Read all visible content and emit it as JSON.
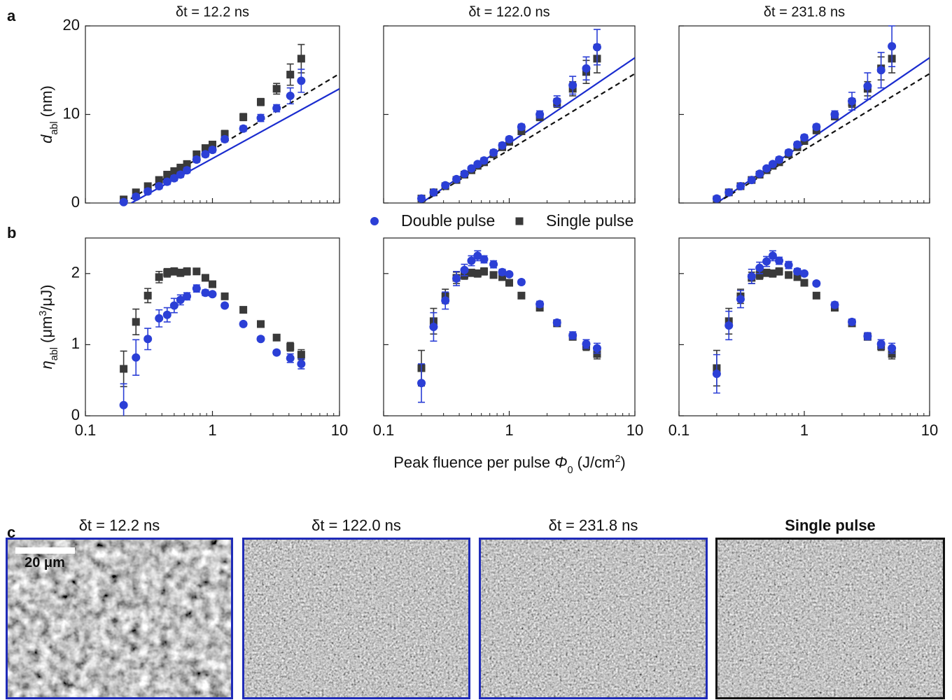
{
  "panel_labels": [
    "a",
    "b",
    "c"
  ],
  "chart_data": [
    {
      "type": "scatter",
      "title": "δt = 12.2 ns",
      "xlog": true,
      "xlim": [
        0.1,
        10
      ],
      "xticks": [
        0.1,
        1,
        10
      ],
      "show_xtick_labels": false,
      "ylim": [
        0,
        20
      ],
      "yticks": [
        0,
        10,
        20
      ],
      "show_ytick_labels": true,
      "ylabel": [
        {
          "t": "d",
          "italic": true
        },
        {
          "t": "abl",
          "sub": true
        },
        {
          "t": " (nm)"
        }
      ],
      "x": [
        0.2,
        0.25,
        0.31,
        0.38,
        0.44,
        0.5,
        0.56,
        0.63,
        0.75,
        0.88,
        1.0,
        1.25,
        1.75,
        2.4,
        3.2,
        4.1,
        5.0
      ],
      "series": [
        {
          "color": "#3a3a3a",
          "marker": "square",
          "values": [
            0.4,
            1.2,
            1.9,
            2.6,
            3.2,
            3.6,
            4.0,
            4.4,
            5.5,
            6.2,
            6.6,
            7.8,
            9.7,
            11.4,
            12.9,
            14.5,
            16.3
          ],
          "errors": [
            0.3,
            0.3,
            0.3,
            0.3,
            0.3,
            0.3,
            0.3,
            0.3,
            0.3,
            0.3,
            0.3,
            0.4,
            0.4,
            0.4,
            0.6,
            1.2,
            1.6
          ]
        },
        {
          "color": "#2b3fd6",
          "marker": "circle",
          "values": [
            0.1,
            0.7,
            1.3,
            1.9,
            2.4,
            2.8,
            3.2,
            3.7,
            4.9,
            5.5,
            6.0,
            7.2,
            8.4,
            9.6,
            10.7,
            12.1,
            13.8
          ],
          "errors": [
            0.2,
            0.3,
            0.3,
            0.3,
            0.3,
            0.3,
            0.3,
            0.3,
            0.3,
            0.3,
            0.3,
            0.3,
            0.3,
            0.4,
            0.4,
            0.9,
            1.3
          ]
        }
      ],
      "lines": [
        {
          "color": "#1a2ccf",
          "dash": false,
          "x": [
            0.23,
            10
          ],
          "y": [
            0,
            12.9
          ]
        },
        {
          "color": "#111111",
          "dash": true,
          "x": [
            0.2,
            10
          ],
          "y": [
            0,
            14.6
          ]
        }
      ]
    },
    {
      "type": "scatter",
      "title": "δt = 122.0 ns",
      "xlog": true,
      "xlim": [
        0.1,
        10
      ],
      "xticks": [
        0.1,
        1,
        10
      ],
      "show_xtick_labels": false,
      "ylim": [
        0,
        20
      ],
      "yticks": [
        0,
        10,
        20
      ],
      "show_ytick_labels": false,
      "x": [
        0.2,
        0.25,
        0.31,
        0.38,
        0.44,
        0.5,
        0.56,
        0.63,
        0.75,
        0.88,
        1.0,
        1.25,
        1.75,
        2.4,
        3.2,
        4.1,
        5.0
      ],
      "series": [
        {
          "color": "#3a3a3a",
          "marker": "square",
          "values": [
            0.5,
            1.2,
            1.9,
            2.6,
            3.2,
            3.7,
            4.2,
            4.6,
            5.5,
            6.3,
            6.9,
            8.1,
            9.7,
            11.3,
            12.9,
            14.8,
            16.3
          ],
          "errors": [
            0.3,
            0.3,
            0.3,
            0.3,
            0.3,
            0.3,
            0.3,
            0.3,
            0.3,
            0.3,
            0.3,
            0.3,
            0.4,
            0.5,
            0.8,
            1.3,
            1.6
          ]
        },
        {
          "color": "#2b3fd6",
          "marker": "circle",
          "values": [
            0.5,
            1.2,
            2.0,
            2.7,
            3.3,
            3.9,
            4.4,
            4.8,
            5.7,
            6.5,
            7.2,
            8.6,
            10.0,
            11.5,
            13.3,
            15.2,
            17.6
          ],
          "errors": [
            0.2,
            0.2,
            0.2,
            0.2,
            0.2,
            0.2,
            0.2,
            0.3,
            0.3,
            0.3,
            0.3,
            0.3,
            0.4,
            0.6,
            1.0,
            1.3,
            2.0
          ]
        }
      ],
      "lines": [
        {
          "color": "#1a2ccf",
          "dash": false,
          "x": [
            0.2,
            10
          ],
          "y": [
            0,
            16.4
          ]
        },
        {
          "color": "#111111",
          "dash": true,
          "x": [
            0.2,
            10
          ],
          "y": [
            0,
            14.6
          ]
        }
      ]
    },
    {
      "type": "scatter",
      "title": "δt = 231.8 ns",
      "xlog": true,
      "xlim": [
        0.1,
        10
      ],
      "xticks": [
        0.1,
        1,
        10
      ],
      "show_xtick_labels": false,
      "ylim": [
        0,
        20
      ],
      "yticks": [
        0,
        10,
        20
      ],
      "show_ytick_labels": false,
      "x": [
        0.2,
        0.25,
        0.31,
        0.38,
        0.44,
        0.5,
        0.56,
        0.63,
        0.75,
        0.88,
        1.0,
        1.25,
        1.75,
        2.4,
        3.2,
        4.1,
        5.0
      ],
      "series": [
        {
          "color": "#3a3a3a",
          "marker": "square",
          "values": [
            0.4,
            1.2,
            1.9,
            2.6,
            3.2,
            3.7,
            4.2,
            4.6,
            5.5,
            6.3,
            7.0,
            8.2,
            9.8,
            11.3,
            12.9,
            15.2,
            16.3
          ],
          "errors": [
            0.3,
            0.3,
            0.3,
            0.3,
            0.3,
            0.3,
            0.3,
            0.3,
            0.3,
            0.3,
            0.3,
            0.3,
            0.4,
            0.5,
            0.8,
            1.3,
            1.6
          ]
        },
        {
          "color": "#2b3fd6",
          "marker": "circle",
          "values": [
            0.5,
            1.2,
            1.9,
            2.6,
            3.3,
            3.9,
            4.4,
            4.9,
            5.7,
            6.6,
            7.4,
            8.6,
            10.0,
            11.5,
            13.2,
            15.0,
            17.7
          ],
          "errors": [
            0.2,
            0.2,
            0.2,
            0.2,
            0.2,
            0.2,
            0.2,
            0.3,
            0.3,
            0.3,
            0.3,
            0.3,
            0.4,
            1.0,
            1.5,
            2.0,
            2.3
          ]
        }
      ],
      "lines": [
        {
          "color": "#1a2ccf",
          "dash": false,
          "x": [
            0.2,
            10
          ],
          "y": [
            0,
            16.4
          ]
        },
        {
          "color": "#111111",
          "dash": true,
          "x": [
            0.2,
            10
          ],
          "y": [
            0,
            14.6
          ]
        }
      ]
    },
    {
      "type": "scatter",
      "xlog": true,
      "xlim": [
        0.1,
        10
      ],
      "xticks": [
        0.1,
        1,
        10
      ],
      "show_xtick_labels": true,
      "ylim": [
        0,
        2.5
      ],
      "yticks": [
        0,
        1,
        2
      ],
      "show_ytick_labels": true,
      "ylabel": [
        {
          "t": "η",
          "italic": true
        },
        {
          "t": "abl",
          "sub": true
        },
        {
          "t": " (μm"
        },
        {
          "t": "3",
          "sup": true
        },
        {
          "t": "/μJ)"
        }
      ],
      "x": [
        0.2,
        0.25,
        0.31,
        0.38,
        0.44,
        0.5,
        0.56,
        0.63,
        0.75,
        0.88,
        1.0,
        1.25,
        1.75,
        2.4,
        3.2,
        4.1,
        5.0
      ],
      "series": [
        {
          "color": "#3a3a3a",
          "marker": "square",
          "values": [
            0.66,
            1.32,
            1.69,
            1.95,
            2.01,
            2.03,
            2.01,
            2.03,
            2.03,
            1.94,
            1.85,
            1.68,
            1.49,
            1.29,
            1.1,
            0.97,
            0.86
          ],
          "errors": [
            0.25,
            0.18,
            0.1,
            0.08,
            0.06,
            0.05,
            0.05,
            0.05,
            0.04,
            0.04,
            0.03,
            0.03,
            0.03,
            0.03,
            0.04,
            0.06,
            0.07
          ]
        },
        {
          "color": "#2b3fd6",
          "marker": "circle",
          "values": [
            0.15,
            0.82,
            1.08,
            1.37,
            1.42,
            1.55,
            1.63,
            1.68,
            1.79,
            1.73,
            1.71,
            1.55,
            1.29,
            1.08,
            0.89,
            0.81,
            0.73
          ],
          "errors": [
            0.3,
            0.25,
            0.15,
            0.12,
            0.1,
            0.1,
            0.07,
            0.05,
            0.05,
            0.04,
            0.03,
            0.03,
            0.03,
            0.03,
            0.03,
            0.06,
            0.07
          ]
        }
      ]
    },
    {
      "type": "scatter",
      "xlog": true,
      "xlim": [
        0.1,
        10
      ],
      "xticks": [
        0.1,
        1,
        10
      ],
      "show_xtick_labels": true,
      "ylim": [
        0,
        2.5
      ],
      "yticks": [
        0,
        1,
        2
      ],
      "show_ytick_labels": false,
      "x": [
        0.2,
        0.25,
        0.31,
        0.38,
        0.44,
        0.5,
        0.56,
        0.63,
        0.75,
        0.88,
        1.0,
        1.25,
        1.75,
        2.4,
        3.2,
        4.1,
        5.0
      ],
      "series": [
        {
          "color": "#3a3a3a",
          "marker": "square",
          "values": [
            0.67,
            1.33,
            1.68,
            1.94,
            1.98,
            2.01,
            2.0,
            2.03,
            1.98,
            1.95,
            1.87,
            1.69,
            1.52,
            1.3,
            1.11,
            0.98,
            0.87
          ],
          "errors": [
            0.25,
            0.18,
            0.1,
            0.08,
            0.06,
            0.05,
            0.05,
            0.05,
            0.04,
            0.04,
            0.03,
            0.03,
            0.03,
            0.03,
            0.04,
            0.06,
            0.07
          ]
        },
        {
          "color": "#2b3fd6",
          "marker": "circle",
          "values": [
            0.46,
            1.25,
            1.62,
            1.93,
            2.05,
            2.18,
            2.25,
            2.2,
            2.13,
            2.02,
            1.99,
            1.88,
            1.57,
            1.31,
            1.13,
            1.01,
            0.95
          ],
          "errors": [
            0.27,
            0.2,
            0.12,
            0.1,
            0.08,
            0.07,
            0.07,
            0.05,
            0.05,
            0.04,
            0.03,
            0.03,
            0.04,
            0.04,
            0.05,
            0.06,
            0.07
          ]
        }
      ]
    },
    {
      "type": "scatter",
      "xlog": true,
      "xlim": [
        0.1,
        10
      ],
      "xticks": [
        0.1,
        1,
        10
      ],
      "show_xtick_labels": true,
      "ylim": [
        0,
        2.5
      ],
      "yticks": [
        0,
        1,
        2
      ],
      "show_ytick_labels": false,
      "x": [
        0.2,
        0.25,
        0.31,
        0.38,
        0.44,
        0.5,
        0.56,
        0.63,
        0.75,
        0.88,
        1.0,
        1.25,
        1.75,
        2.4,
        3.2,
        4.1,
        5.0
      ],
      "series": [
        {
          "color": "#3a3a3a",
          "marker": "square",
          "values": [
            0.67,
            1.33,
            1.68,
            1.94,
            1.98,
            2.01,
            2.0,
            2.03,
            1.98,
            1.95,
            1.87,
            1.69,
            1.52,
            1.3,
            1.11,
            0.98,
            0.87
          ],
          "errors": [
            0.25,
            0.18,
            0.1,
            0.08,
            0.06,
            0.05,
            0.05,
            0.05,
            0.04,
            0.04,
            0.03,
            0.03,
            0.03,
            0.03,
            0.04,
            0.06,
            0.07
          ]
        },
        {
          "color": "#2b3fd6",
          "marker": "circle",
          "values": [
            0.59,
            1.27,
            1.64,
            1.96,
            2.08,
            2.17,
            2.25,
            2.18,
            2.12,
            2.03,
            2.0,
            1.86,
            1.56,
            1.32,
            1.12,
            1.01,
            0.95
          ],
          "errors": [
            0.27,
            0.2,
            0.12,
            0.1,
            0.08,
            0.07,
            0.07,
            0.05,
            0.05,
            0.04,
            0.03,
            0.03,
            0.04,
            0.04,
            0.05,
            0.06,
            0.07
          ]
        }
      ]
    }
  ],
  "legend": [
    {
      "name": "Double pulse",
      "color": "#2b3fd6",
      "marker": "circle"
    },
    {
      "name": "Single pulse",
      "color": "#3a3a3a",
      "marker": "square"
    }
  ],
  "xlabel": [
    {
      "t": "Peak fluence per pulse "
    },
    {
      "t": "Φ",
      "italic": true
    },
    {
      "t": "0",
      "sub": true
    },
    {
      "t": " (J/cm"
    },
    {
      "t": "2",
      "sup": true
    },
    {
      "t": ")"
    }
  ],
  "panel_c": {
    "images": [
      {
        "title": "δt = 12.2 ns",
        "border": "#1f2bb8"
      },
      {
        "title": "δt = 122.0 ns",
        "border": "#1f2bb8"
      },
      {
        "title": "δt = 231.8 ns",
        "border": "#1f2bb8"
      },
      {
        "title": "Single pulse",
        "border": "#111111"
      }
    ],
    "scale_bar": "20 μm"
  }
}
